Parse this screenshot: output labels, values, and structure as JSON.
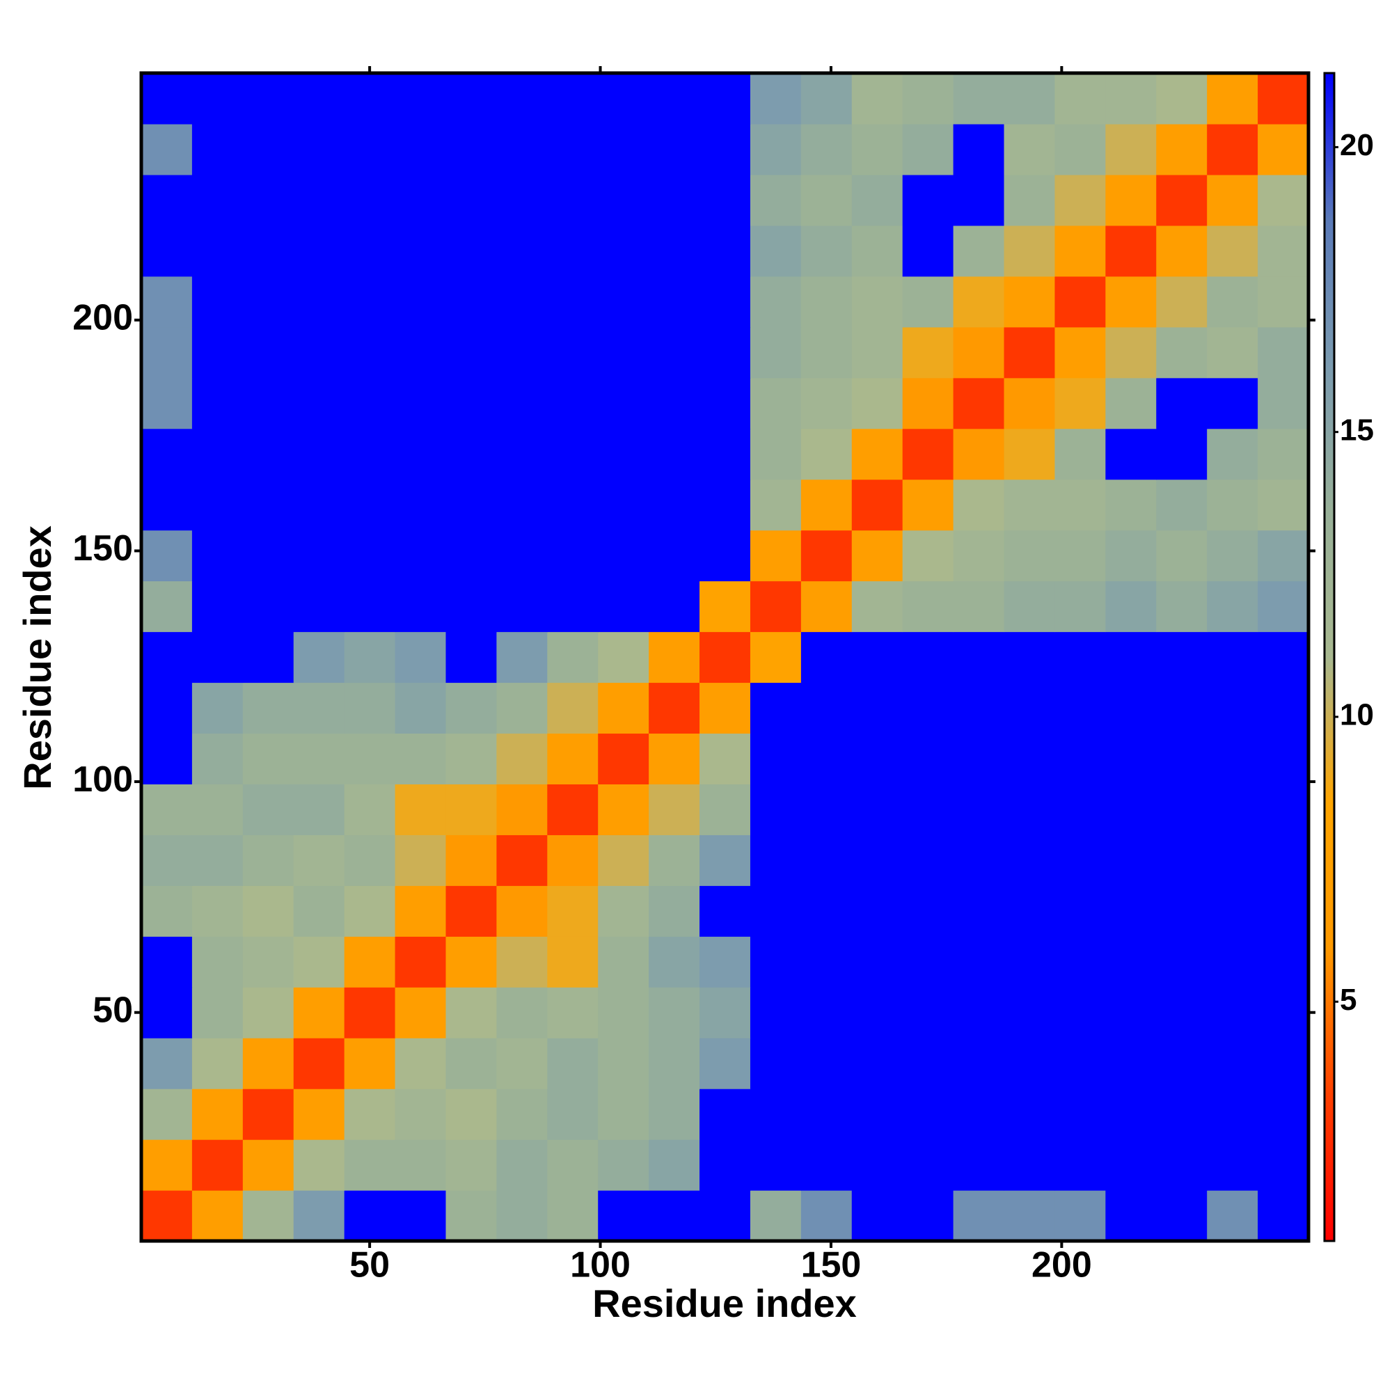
{
  "chart_data": {
    "type": "heatmap",
    "xlabel": "Residue index",
    "ylabel": "Residue index",
    "xlim": [
      0.5,
      253.5
    ],
    "ylim": [
      0.5,
      253.5
    ],
    "xticks": [
      50,
      100,
      150,
      200
    ],
    "yticks": [
      50,
      100,
      150,
      200
    ],
    "x_edges": [
      0.5,
      11.5,
      22.5,
      33.5,
      44.5,
      55.5,
      66.5,
      77.5,
      88.5,
      99.5,
      110.5,
      121.5,
      132.5,
      143.5,
      154.5,
      165.5,
      176.5,
      187.5,
      198.5,
      209.5,
      220.5,
      231.5,
      242.5,
      253.5
    ],
    "y_edges": [
      0.5,
      11.5,
      22.5,
      33.5,
      44.5,
      55.5,
      66.5,
      77.5,
      88.5,
      99.5,
      110.5,
      121.5,
      132.5,
      143.5,
      154.5,
      165.5,
      176.5,
      187.5,
      198.5,
      209.5,
      220.5,
      231.5,
      242.5,
      253.5
    ],
    "z": [
      [
        3,
        7,
        12,
        16,
        22,
        22,
        13,
        14,
        13,
        22,
        22,
        22,
        14,
        17,
        22,
        22,
        17,
        17,
        17,
        22,
        22,
        17,
        22
      ],
      [
        7,
        3,
        7,
        11,
        13,
        13,
        12,
        14,
        13,
        14,
        15,
        22,
        22,
        22,
        22,
        22,
        22,
        22,
        22,
        22,
        22,
        22,
        22
      ],
      [
        12,
        7,
        3,
        7,
        11,
        12,
        11,
        13,
        14,
        13,
        14,
        22,
        22,
        22,
        22,
        22,
        22,
        22,
        22,
        22,
        22,
        22,
        22
      ],
      [
        16,
        11,
        7,
        3,
        7,
        11,
        13,
        12,
        14,
        13,
        14,
        16,
        22,
        22,
        22,
        22,
        22,
        22,
        22,
        22,
        22,
        22,
        22
      ],
      [
        22,
        13,
        11,
        7,
        3,
        7,
        11,
        13,
        12,
        13,
        14,
        15,
        22,
        22,
        22,
        22,
        22,
        22,
        22,
        22,
        22,
        22,
        22
      ],
      [
        22,
        13,
        12,
        11,
        7,
        3,
        7,
        10,
        9,
        13,
        15,
        16,
        22,
        22,
        22,
        22,
        22,
        22,
        22,
        22,
        22,
        22,
        22
      ],
      [
        13,
        12,
        11,
        13,
        11,
        7,
        3,
        6,
        9,
        12,
        14,
        22,
        22,
        22,
        22,
        22,
        22,
        22,
        22,
        22,
        22,
        22,
        22
      ],
      [
        14,
        14,
        13,
        12,
        13,
        10,
        6,
        3,
        6,
        10,
        13,
        16,
        22,
        22,
        22,
        22,
        22,
        22,
        22,
        22,
        22,
        22,
        22
      ],
      [
        13,
        13,
        14,
        14,
        12,
        9,
        9,
        6,
        3,
        7,
        10,
        13,
        22,
        22,
        22,
        22,
        22,
        22,
        22,
        22,
        22,
        22,
        22
      ],
      [
        22,
        14,
        13,
        13,
        13,
        13,
        12,
        10,
        7,
        3,
        7,
        11,
        22,
        22,
        22,
        22,
        22,
        22,
        22,
        22,
        22,
        22,
        22
      ],
      [
        22,
        15,
        14,
        14,
        14,
        15,
        14,
        13,
        10,
        7,
        3,
        7,
        22,
        22,
        22,
        22,
        22,
        22,
        22,
        22,
        22,
        22,
        22
      ],
      [
        22,
        22,
        22,
        16,
        15,
        16,
        22,
        16,
        13,
        11,
        7,
        3,
        8,
        22,
        22,
        22,
        22,
        22,
        22,
        22,
        22,
        22,
        22
      ],
      [
        14,
        22,
        22,
        22,
        22,
        22,
        22,
        22,
        22,
        22,
        22,
        8,
        3,
        7,
        12,
        13,
        13,
        14,
        14,
        15,
        14,
        15,
        16
      ],
      [
        17,
        22,
        22,
        22,
        22,
        22,
        22,
        22,
        22,
        22,
        22,
        22,
        7,
        3,
        7,
        11,
        12,
        13,
        13,
        14,
        13,
        14,
        15
      ],
      [
        22,
        22,
        22,
        22,
        22,
        22,
        22,
        22,
        22,
        22,
        22,
        22,
        12,
        7,
        3,
        7,
        11,
        12,
        12,
        13,
        14,
        13,
        12
      ],
      [
        22,
        22,
        22,
        22,
        22,
        22,
        22,
        22,
        22,
        22,
        22,
        22,
        13,
        11,
        7,
        3,
        6,
        9,
        13,
        22,
        22,
        14,
        13
      ],
      [
        17,
        22,
        22,
        22,
        22,
        22,
        22,
        22,
        22,
        22,
        22,
        22,
        13,
        12,
        11,
        6,
        3,
        6,
        9,
        13,
        22,
        22,
        14
      ],
      [
        17,
        22,
        22,
        22,
        22,
        22,
        22,
        22,
        22,
        22,
        22,
        22,
        14,
        13,
        12,
        9,
        6,
        3,
        7,
        10,
        13,
        12,
        14
      ],
      [
        17,
        22,
        22,
        22,
        22,
        22,
        22,
        22,
        22,
        22,
        22,
        22,
        14,
        13,
        12,
        13,
        9,
        7,
        3,
        7,
        10,
        13,
        12
      ],
      [
        22,
        22,
        22,
        22,
        22,
        22,
        22,
        22,
        22,
        22,
        22,
        22,
        15,
        14,
        13,
        22,
        13,
        10,
        7,
        3,
        7,
        10,
        12
      ],
      [
        22,
        22,
        22,
        22,
        22,
        22,
        22,
        22,
        22,
        22,
        22,
        22,
        14,
        13,
        14,
        22,
        22,
        13,
        10,
        7,
        3,
        7,
        11
      ],
      [
        17,
        22,
        22,
        22,
        22,
        22,
        22,
        22,
        22,
        22,
        22,
        22,
        15,
        14,
        13,
        14,
        22,
        12,
        13,
        10,
        7,
        3,
        7
      ],
      [
        22,
        22,
        22,
        22,
        22,
        22,
        22,
        22,
        22,
        22,
        22,
        22,
        16,
        15,
        12,
        13,
        14,
        14,
        12,
        12,
        11,
        7,
        3
      ]
    ],
    "zlim": [
      0.8,
      21.3
    ],
    "zticks": [
      5,
      10,
      15,
      20
    ],
    "colorscale": [
      "#ff0000",
      "#ff4000",
      "#ff9900",
      "#ffa500",
      "#a8b890",
      "#98b098",
      "#7b9bb0",
      "#5a7ab8",
      "#0000ff"
    ]
  }
}
